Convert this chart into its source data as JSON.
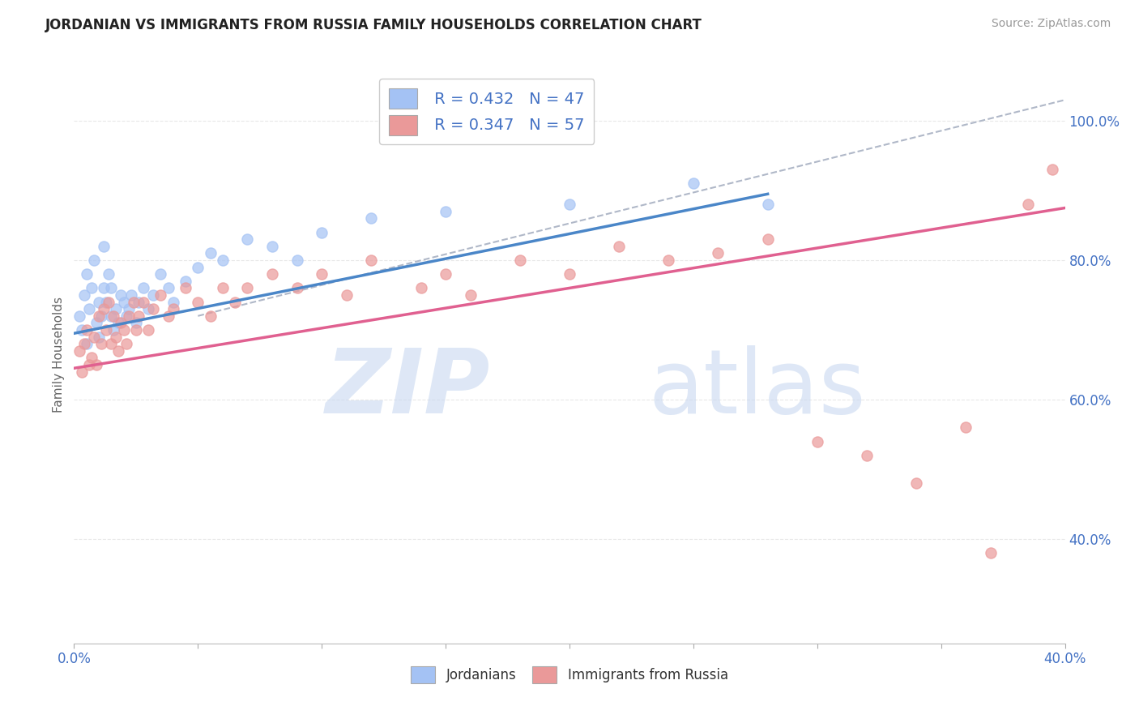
{
  "title": "JORDANIAN VS IMMIGRANTS FROM RUSSIA FAMILY HOUSEHOLDS CORRELATION CHART",
  "source": "Source: ZipAtlas.com",
  "ylabel": "Family Households",
  "xlim": [
    0.0,
    0.4
  ],
  "ylim": [
    0.25,
    1.08
  ],
  "xticks": [
    0.0,
    0.05,
    0.1,
    0.15,
    0.2,
    0.25,
    0.3,
    0.35,
    0.4
  ],
  "yticks": [
    0.4,
    0.6,
    0.8,
    1.0
  ],
  "ytick_labels": [
    "40.0%",
    "60.0%",
    "80.0%",
    "100.0%"
  ],
  "xtick_labels": [
    "0.0%",
    "",
    "",
    "",
    "",
    "",
    "",
    "",
    "40.0%"
  ],
  "legend_r_blue": "R = 0.432",
  "legend_n_blue": "N = 47",
  "legend_r_pink": "R = 0.347",
  "legend_n_pink": "N = 57",
  "blue_color": "#a4c2f4",
  "pink_color": "#ea9999",
  "blue_line_color": "#4a86c8",
  "pink_line_color": "#e06090",
  "gray_line_color": "#b0b8c8",
  "text_color": "#4472c4",
  "background_color": "#ffffff",
  "grid_color": "#e8e8e8",
  "jordanians_x": [
    0.002,
    0.003,
    0.004,
    0.005,
    0.005,
    0.006,
    0.007,
    0.008,
    0.009,
    0.01,
    0.01,
    0.011,
    0.012,
    0.012,
    0.013,
    0.014,
    0.015,
    0.015,
    0.016,
    0.017,
    0.018,
    0.019,
    0.02,
    0.021,
    0.022,
    0.023,
    0.025,
    0.026,
    0.028,
    0.03,
    0.032,
    0.035,
    0.038,
    0.04,
    0.045,
    0.05,
    0.055,
    0.06,
    0.07,
    0.08,
    0.09,
    0.1,
    0.12,
    0.15,
    0.2,
    0.25,
    0.28
  ],
  "jordanians_y": [
    0.72,
    0.7,
    0.75,
    0.78,
    0.68,
    0.73,
    0.76,
    0.8,
    0.71,
    0.74,
    0.69,
    0.72,
    0.76,
    0.82,
    0.74,
    0.78,
    0.72,
    0.76,
    0.7,
    0.73,
    0.71,
    0.75,
    0.74,
    0.72,
    0.73,
    0.75,
    0.71,
    0.74,
    0.76,
    0.73,
    0.75,
    0.78,
    0.76,
    0.74,
    0.77,
    0.79,
    0.81,
    0.8,
    0.83,
    0.82,
    0.8,
    0.84,
    0.86,
    0.87,
    0.88,
    0.91,
    0.88
  ],
  "russia_x": [
    0.002,
    0.003,
    0.004,
    0.005,
    0.006,
    0.007,
    0.008,
    0.009,
    0.01,
    0.011,
    0.012,
    0.013,
    0.014,
    0.015,
    0.016,
    0.017,
    0.018,
    0.019,
    0.02,
    0.021,
    0.022,
    0.024,
    0.025,
    0.026,
    0.028,
    0.03,
    0.032,
    0.035,
    0.038,
    0.04,
    0.045,
    0.05,
    0.055,
    0.06,
    0.065,
    0.07,
    0.08,
    0.09,
    0.1,
    0.11,
    0.12,
    0.14,
    0.15,
    0.16,
    0.18,
    0.2,
    0.22,
    0.24,
    0.26,
    0.28,
    0.3,
    0.32,
    0.34,
    0.36,
    0.37,
    0.385,
    0.395
  ],
  "russia_y": [
    0.67,
    0.64,
    0.68,
    0.7,
    0.65,
    0.66,
    0.69,
    0.65,
    0.72,
    0.68,
    0.73,
    0.7,
    0.74,
    0.68,
    0.72,
    0.69,
    0.67,
    0.71,
    0.7,
    0.68,
    0.72,
    0.74,
    0.7,
    0.72,
    0.74,
    0.7,
    0.73,
    0.75,
    0.72,
    0.73,
    0.76,
    0.74,
    0.72,
    0.76,
    0.74,
    0.76,
    0.78,
    0.76,
    0.78,
    0.75,
    0.8,
    0.76,
    0.78,
    0.75,
    0.8,
    0.78,
    0.82,
    0.8,
    0.81,
    0.83,
    0.54,
    0.52,
    0.48,
    0.56,
    0.38,
    0.88,
    0.93
  ],
  "blue_trend_x": [
    0.0,
    0.28
  ],
  "blue_trend_y": [
    0.695,
    0.895
  ],
  "pink_trend_x": [
    0.0,
    0.4
  ],
  "pink_trend_y": [
    0.645,
    0.875
  ]
}
